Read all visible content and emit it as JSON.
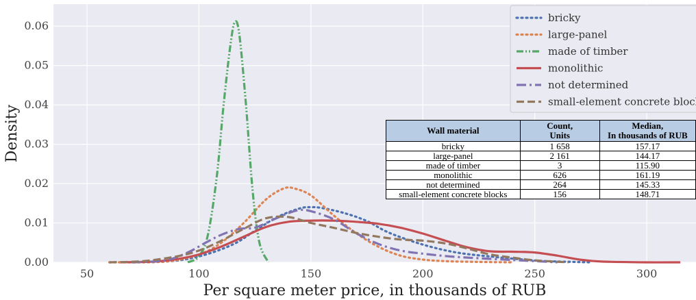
{
  "chart_data": {
    "type": "line",
    "title": "",
    "xlabel": "Per square meter price, in thousands of RUB",
    "ylabel": "Density",
    "xlim": [
      35,
      322
    ],
    "ylim": [
      0,
      0.0656
    ],
    "xticks": [
      50,
      100,
      150,
      200,
      250,
      300
    ],
    "yticks": [
      0.0,
      0.01,
      0.02,
      0.03,
      0.04,
      0.05,
      0.06
    ],
    "ytick_labels": [
      "0.00",
      "0.01",
      "0.02",
      "0.03",
      "0.04",
      "0.05",
      "0.06"
    ],
    "grid": true,
    "background": "#eaeaf2",
    "legend_position": "top-right",
    "series": [
      {
        "name": "bricky",
        "color": "#4c72b0",
        "dash": "dotted",
        "x": [
          60,
          85,
          100,
          115,
          125,
          135,
          145,
          150,
          155,
          165,
          175,
          185,
          200,
          215,
          230,
          245,
          255,
          275
        ],
        "y": [
          0.0,
          0.0002,
          0.0015,
          0.0045,
          0.008,
          0.0115,
          0.0137,
          0.014,
          0.0138,
          0.0125,
          0.0105,
          0.0075,
          0.0045,
          0.0025,
          0.0015,
          0.0007,
          0.0003,
          0.0
        ]
      },
      {
        "name": "large-panel",
        "color": "#dd8452",
        "dash": "dotted",
        "x": [
          60,
          85,
          100,
          110,
          120,
          130,
          138,
          143,
          150,
          160,
          170,
          180,
          190,
          200,
          210,
          225,
          240
        ],
        "y": [
          0.0,
          0.0002,
          0.002,
          0.005,
          0.01,
          0.016,
          0.0188,
          0.0187,
          0.017,
          0.012,
          0.0075,
          0.004,
          0.0017,
          0.0007,
          0.0003,
          0.0001,
          0.0
        ]
      },
      {
        "name": "made of timber",
        "color": "#55a868",
        "dash": "dashdotdot",
        "x": [
          95,
          100,
          104,
          108,
          111,
          114,
          116,
          118,
          121,
          124,
          127,
          131
        ],
        "y": [
          0.0,
          0.0015,
          0.007,
          0.022,
          0.04,
          0.055,
          0.061,
          0.058,
          0.04,
          0.018,
          0.005,
          0.0
        ]
      },
      {
        "name": "monolithic",
        "color": "#c44e52",
        "dash": "solid",
        "x": [
          65,
          80,
          90,
          100,
          110,
          120,
          130,
          140,
          150,
          160,
          170,
          180,
          190,
          200,
          210,
          220,
          230,
          240,
          250,
          260,
          270,
          280,
          300,
          315
        ],
        "y": [
          0.0,
          0.0002,
          0.0008,
          0.002,
          0.004,
          0.0065,
          0.009,
          0.0103,
          0.0106,
          0.0106,
          0.0103,
          0.0098,
          0.0088,
          0.0073,
          0.0055,
          0.0038,
          0.0028,
          0.0027,
          0.0025,
          0.0017,
          0.0007,
          0.0002,
          0.0,
          0.0
        ]
      },
      {
        "name": "not determined",
        "color": "#8172b2",
        "dash": "dashdot",
        "x": [
          70,
          85,
          95,
          103,
          110,
          118,
          125,
          133,
          140,
          145,
          150,
          160,
          170,
          180,
          190,
          200,
          210,
          220,
          240,
          260
        ],
        "y": [
          0.0,
          0.0005,
          0.0025,
          0.005,
          0.007,
          0.0085,
          0.0088,
          0.0108,
          0.0125,
          0.0133,
          0.013,
          0.011,
          0.0075,
          0.0047,
          0.003,
          0.0022,
          0.0016,
          0.0012,
          0.0006,
          0.0
        ]
      },
      {
        "name": "small-element concrete blocks",
        "color": "#937860",
        "dash": "dashed",
        "x": [
          60,
          75,
          90,
          100,
          110,
          120,
          130,
          140,
          150,
          160,
          170,
          180,
          190,
          200,
          210,
          220,
          230,
          240,
          250,
          265
        ],
        "y": [
          0.0,
          0.0003,
          0.0015,
          0.003,
          0.0055,
          0.0085,
          0.0112,
          0.0115,
          0.01,
          0.0088,
          0.0075,
          0.0065,
          0.0058,
          0.0055,
          0.0048,
          0.0035,
          0.002,
          0.0012,
          0.0005,
          0.0
        ]
      }
    ],
    "table": {
      "headers": [
        [
          "Wall material"
        ],
        [
          "Count,",
          "Units"
        ],
        [
          "Median,",
          "In thousands of RUB"
        ]
      ],
      "rows": [
        [
          "bricky",
          "1 658",
          "157.17"
        ],
        [
          "large-panel",
          "2 161",
          "144.17"
        ],
        [
          "made of timber",
          "3",
          "115.90"
        ],
        [
          "monolithic",
          "626",
          "161.19"
        ],
        [
          "not determined",
          "264",
          "145.33"
        ],
        [
          "small-element concrete blocks",
          "156",
          "148.71"
        ]
      ]
    }
  }
}
